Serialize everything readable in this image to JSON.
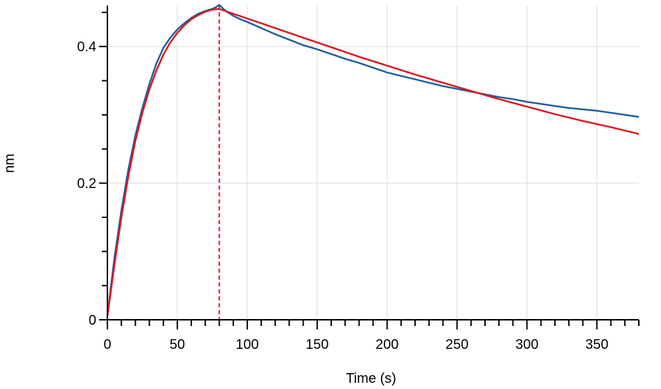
{
  "chart_data": {
    "type": "line",
    "title": "",
    "xlabel": "Time (s)",
    "ylabel": "nm",
    "xlim": [
      0,
      380
    ],
    "ylim": [
      0,
      0.46
    ],
    "grid": true,
    "legend": "none",
    "x_ticks": [
      0,
      50,
      100,
      150,
      200,
      250,
      300,
      350
    ],
    "x_tick_labels": [
      "0",
      "50",
      "100",
      "150",
      "200",
      "250",
      "300",
      "350"
    ],
    "y_ticks": [
      0,
      0.2,
      0.4
    ],
    "y_tick_labels": [
      "0",
      "0.2",
      "0.4"
    ],
    "vertical_markers": [
      {
        "x": 0,
        "color": "#e0141e",
        "style": "dashed"
      },
      {
        "x": 80,
        "color": "#e0141e",
        "style": "dashed"
      }
    ],
    "series": [
      {
        "color": "#1f5f9e",
        "x": [
          0,
          2,
          5,
          10,
          15,
          20,
          25,
          30,
          35,
          40,
          45,
          50,
          55,
          60,
          65,
          70,
          75,
          78,
          80,
          83,
          86,
          90,
          95,
          100,
          110,
          120,
          130,
          140,
          150,
          160,
          170,
          180,
          190,
          200,
          210,
          220,
          230,
          240,
          250,
          260,
          270,
          280,
          290,
          300,
          310,
          320,
          330,
          340,
          350,
          360,
          370,
          380
        ],
        "y": [
          0.005,
          0.04,
          0.09,
          0.16,
          0.22,
          0.27,
          0.31,
          0.345,
          0.375,
          0.398,
          0.413,
          0.425,
          0.434,
          0.442,
          0.448,
          0.452,
          0.455,
          0.458,
          0.461,
          0.455,
          0.45,
          0.445,
          0.44,
          0.436,
          0.427,
          0.418,
          0.41,
          0.402,
          0.396,
          0.389,
          0.382,
          0.376,
          0.369,
          0.362,
          0.357,
          0.352,
          0.347,
          0.342,
          0.338,
          0.334,
          0.33,
          0.326,
          0.323,
          0.319,
          0.316,
          0.313,
          0.31,
          0.308,
          0.306,
          0.303,
          0.3,
          0.297
        ]
      },
      {
        "color": "#e0141e",
        "x": [
          0,
          2,
          5,
          10,
          15,
          20,
          25,
          30,
          35,
          40,
          45,
          50,
          55,
          60,
          65,
          70,
          75,
          80,
          90,
          100,
          120,
          140,
          160,
          180,
          200,
          220,
          240,
          260,
          280,
          300,
          320,
          340,
          360,
          380
        ],
        "y": [
          0.005,
          0.035,
          0.08,
          0.15,
          0.21,
          0.262,
          0.303,
          0.337,
          0.365,
          0.388,
          0.406,
          0.42,
          0.431,
          0.44,
          0.446,
          0.451,
          0.454,
          0.455,
          0.448,
          0.441,
          0.427,
          0.413,
          0.399,
          0.385,
          0.372,
          0.359,
          0.347,
          0.335,
          0.323,
          0.312,
          0.301,
          0.291,
          0.282,
          0.272
        ]
      }
    ]
  }
}
